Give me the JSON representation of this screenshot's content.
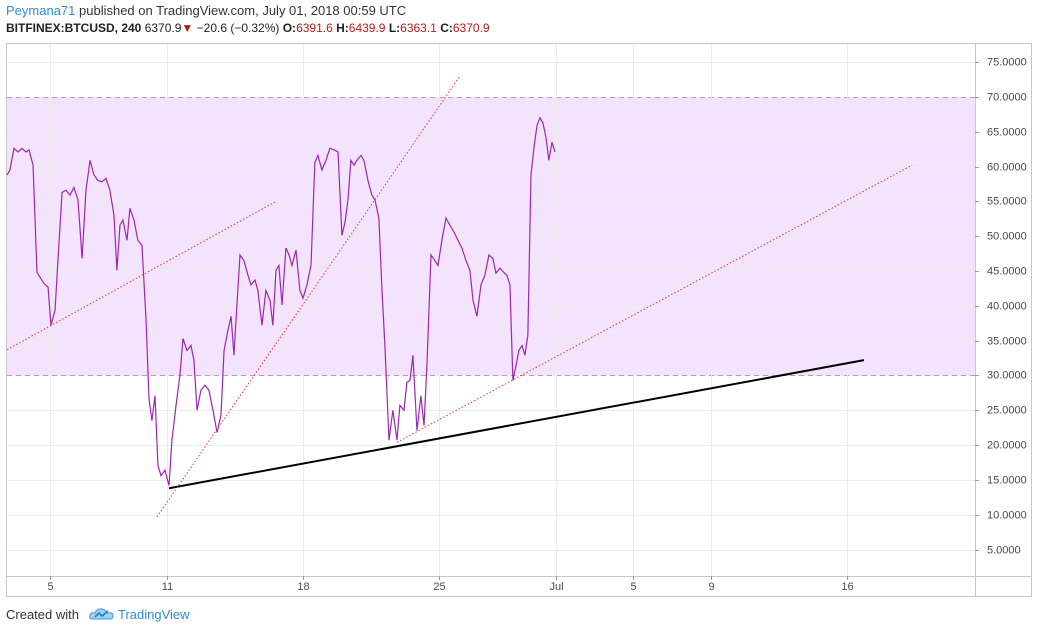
{
  "header": {
    "author": "Peymana71",
    "published": " published on TradingView.com, July 01, 2018 00:59 UTC",
    "symbol": "BITFINEX:BTCUSD, 240",
    "last": "6370.9",
    "change": "−20.6 (−0.32%)",
    "open_label": "O:",
    "open": "6391.6",
    "high_label": "H:",
    "high": "6439.9",
    "low_label": "L:",
    "low": "6363.1",
    "close_label": "C:",
    "close": "6370.9"
  },
  "footer": {
    "created": "Created with",
    "brand": "TradingView"
  },
  "chart_data": {
    "type": "line",
    "color": "#9c27b0",
    "x": [
      2.79,
      2.94,
      3.15,
      3.35,
      3.56,
      3.77,
      3.92,
      4.13,
      4.33,
      4.69,
      4.9,
      5.05,
      5.26,
      5.41,
      5.62,
      5.82,
      6.03,
      6.23,
      6.44,
      6.65,
      6.85,
      7.06,
      7.26,
      7.47,
      7.67,
      7.88,
      8.08,
      8.29,
      8.44,
      8.6,
      8.75,
      8.96,
      9.11,
      9.32,
      9.52,
      9.73,
      9.94,
      10.09,
      10.24,
      10.4,
      10.55,
      10.71,
      10.91,
      11.12,
      11.27,
      11.48,
      11.68,
      11.84,
      12.04,
      12.25,
      12.4,
      12.56,
      12.76,
      12.97,
      13.17,
      13.38,
      13.59,
      13.79,
      13.95,
      14.15,
      14.31,
      14.46,
      14.61,
      14.77,
      14.97,
      15.18,
      15.33,
      15.54,
      15.69,
      15.9,
      16.1,
      16.31,
      16.46,
      16.62,
      16.77,
      16.93,
      17.13,
      17.29,
      17.44,
      17.65,
      17.85,
      18.01,
      18.21,
      18.42,
      18.62,
      18.78,
      18.98,
      19.19,
      19.39,
      19.6,
      19.81,
      20.01,
      20.17,
      20.32,
      20.47,
      20.63,
      20.78,
      20.99,
      21.14,
      21.35,
      21.55,
      21.71,
      21.91,
      22.07,
      22.22,
      22.43,
      22.63,
      22.84,
      22.99,
      23.2,
      23.35,
      23.51,
      23.66,
      23.87,
      24.07,
      24.23,
      24.38,
      24.59,
      24.79,
      24.95,
      25.15,
      25.36,
      25.56,
      25.77,
      25.98,
      26.18,
      26.39,
      26.59,
      26.75,
      26.95,
      27.16,
      27.36,
      27.57,
      27.77,
      27.93,
      28.13,
      28.34,
      28.49,
      28.65,
      28.8,
      28.96,
      29.11,
      29.27,
      29.42,
      29.57,
      29.73,
      29.88,
      30.04,
      30.19,
      30.35,
      30.5,
      30.65,
      30.81,
      30.96
    ],
    "values": [
      58.8,
      59.5,
      62.6,
      62.1,
      62.6,
      62.1,
      62.4,
      60.2,
      44.8,
      43.2,
      42.7,
      37.2,
      39.4,
      46.5,
      56.3,
      56.6,
      55.9,
      57.0,
      55.2,
      46.8,
      56.6,
      60.9,
      58.8,
      58.0,
      57.8,
      58.3,
      56.6,
      53.0,
      45.1,
      51.6,
      52.3,
      49.4,
      54.0,
      52.3,
      49.4,
      48.7,
      37.9,
      26.7,
      23.5,
      27.1,
      17.1,
      15.6,
      16.4,
      14.2,
      20.7,
      25.7,
      30.0,
      35.3,
      33.6,
      34.3,
      32.2,
      25.0,
      27.9,
      28.6,
      27.9,
      25.0,
      21.8,
      24.3,
      33.6,
      36.5,
      38.5,
      32.9,
      40.1,
      47.3,
      46.5,
      44.4,
      43.0,
      43.7,
      42.2,
      37.2,
      42.2,
      40.8,
      37.2,
      45.1,
      45.8,
      40.1,
      48.3,
      47.3,
      45.8,
      48.0,
      42.2,
      41.1,
      43.0,
      45.8,
      60.6,
      61.6,
      59.5,
      60.9,
      62.6,
      62.4,
      62.1,
      50.1,
      52.0,
      55.2,
      60.9,
      60.2,
      60.9,
      61.6,
      60.9,
      58.0,
      55.9,
      55.2,
      52.6,
      42.2,
      34.3,
      20.7,
      25.0,
      20.7,
      25.7,
      25.0,
      29.0,
      29.3,
      32.9,
      22.1,
      27.1,
      22.8,
      31.4,
      47.3,
      46.5,
      45.8,
      49.4,
      52.6,
      51.6,
      50.6,
      49.4,
      48.3,
      46.5,
      45.1,
      40.8,
      38.5,
      43.0,
      44.4,
      47.3,
      46.8,
      44.7,
      45.4,
      44.8,
      44.4,
      43.0,
      29.3,
      31.4,
      33.6,
      34.3,
      32.9,
      35.8,
      58.8,
      62.6,
      65.9,
      67.0,
      66.2,
      64.2,
      60.9,
      63.5,
      62.1
    ],
    "xlim": [
      2.79,
      52.56
    ],
    "ylim": [
      1.2,
      77.6
    ],
    "xticks": [
      5,
      11,
      18,
      25,
      {
        "value": 31,
        "label": "Jul"
      },
      {
        "value": 35,
        "label": "5"
      },
      {
        "value": 39,
        "label": "9"
      },
      {
        "value": 46,
        "label": "16"
      }
    ],
    "yticks": [
      {
        "value": 5,
        "label": "5.0000"
      },
      {
        "value": 10,
        "label": "10.0000"
      },
      {
        "value": 15,
        "label": "15.0000"
      },
      {
        "value": 20,
        "label": "20.0000"
      },
      {
        "value": 25,
        "label": "25.0000"
      },
      {
        "value": 30,
        "label": "30.0000"
      },
      {
        "value": 35,
        "label": "35.0000"
      },
      {
        "value": 40,
        "label": "40.0000"
      },
      {
        "value": 45,
        "label": "45.0000"
      },
      {
        "value": 50,
        "label": "50.0000"
      },
      {
        "value": 55,
        "label": "55.0000"
      },
      {
        "value": 60,
        "label": "60.0000"
      },
      {
        "value": 65,
        "label": "65.0000"
      },
      {
        "value": 70,
        "label": "70.0000"
      },
      {
        "value": 75,
        "label": "75.0000"
      }
    ],
    "grid": true,
    "band": {
      "from": 30,
      "to": 70,
      "color": "#f3e3fc"
    },
    "trend_lines": [
      {
        "from": [
          11.12,
          13.8
        ],
        "to": [
          46.85,
          32.2
        ],
        "color": "#000000",
        "style": "solid"
      },
      {
        "from": [
          2.79,
          33.7
        ],
        "to": [
          16.62,
          55.0
        ],
        "color": "#e53935",
        "style": "dotted"
      },
      {
        "from": [
          10.5,
          9.7
        ],
        "to": [
          26.08,
          73.0
        ],
        "color": "#e53935",
        "style": "dotted"
      },
      {
        "from": [
          22.84,
          20.4
        ],
        "to": [
          49.32,
          60.2
        ],
        "color": "#e53935",
        "style": "dotted"
      }
    ]
  }
}
